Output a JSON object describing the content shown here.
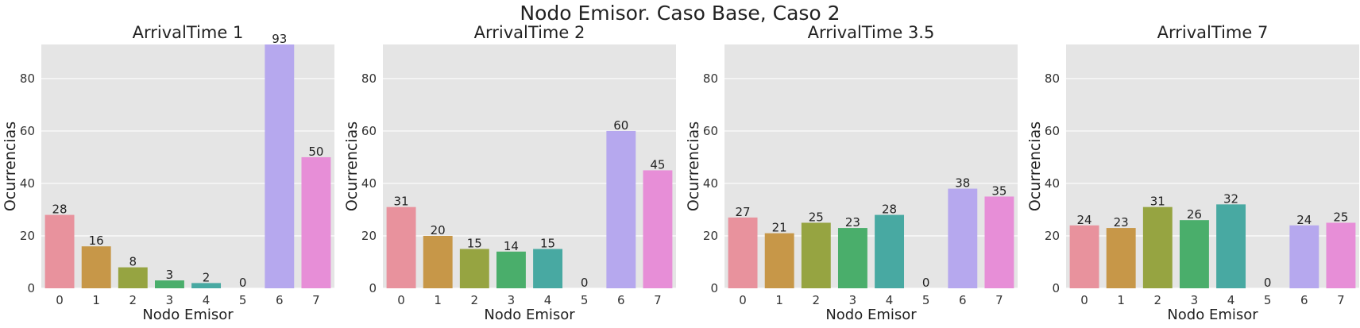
{
  "figure": {
    "title": "Nodo Emisor. Caso Base, Caso 2"
  },
  "colors": [
    "#e8929d",
    "#c79748",
    "#96a441",
    "#4aae6b",
    "#48a9a2",
    "#50a9d6",
    "#b6a8ee",
    "#e78ed7"
  ],
  "chart_data": [
    {
      "type": "bar",
      "title": "ArrivalTime 1",
      "xlabel": "Nodo Emisor",
      "ylabel": "Ocurrencias",
      "categories": [
        "0",
        "1",
        "2",
        "3",
        "4",
        "5",
        "6",
        "7"
      ],
      "values": [
        28,
        16,
        8,
        3,
        2,
        0,
        93,
        50
      ],
      "ylim": [
        0,
        93
      ],
      "yticks": [
        0,
        20,
        40,
        60,
        80
      ],
      "grid": true
    },
    {
      "type": "bar",
      "title": "ArrivalTime 2",
      "xlabel": "Nodo Emisor",
      "ylabel": "Ocurrencias",
      "categories": [
        "0",
        "1",
        "2",
        "3",
        "4",
        "5",
        "6",
        "7"
      ],
      "values": [
        31,
        20,
        15,
        14,
        15,
        0,
        60,
        45
      ],
      "ylim": [
        0,
        93
      ],
      "yticks": [
        0,
        20,
        40,
        60,
        80
      ],
      "grid": true
    },
    {
      "type": "bar",
      "title": "ArrivalTime 3.5",
      "xlabel": "Nodo Emisor",
      "ylabel": "Ocurrencias",
      "categories": [
        "0",
        "1",
        "2",
        "3",
        "4",
        "5",
        "6",
        "7"
      ],
      "values": [
        27,
        21,
        25,
        23,
        28,
        0,
        38,
        35
      ],
      "ylim": [
        0,
        93
      ],
      "yticks": [
        0,
        20,
        40,
        60,
        80
      ],
      "grid": true
    },
    {
      "type": "bar",
      "title": "ArrivalTime 7",
      "xlabel": "Nodo Emisor",
      "ylabel": "Ocurrencias",
      "categories": [
        "0",
        "1",
        "2",
        "3",
        "4",
        "5",
        "6",
        "7"
      ],
      "values": [
        24,
        23,
        31,
        26,
        32,
        0,
        24,
        25
      ],
      "ylim": [
        0,
        93
      ],
      "yticks": [
        0,
        20,
        40,
        60,
        80
      ],
      "grid": true
    }
  ]
}
